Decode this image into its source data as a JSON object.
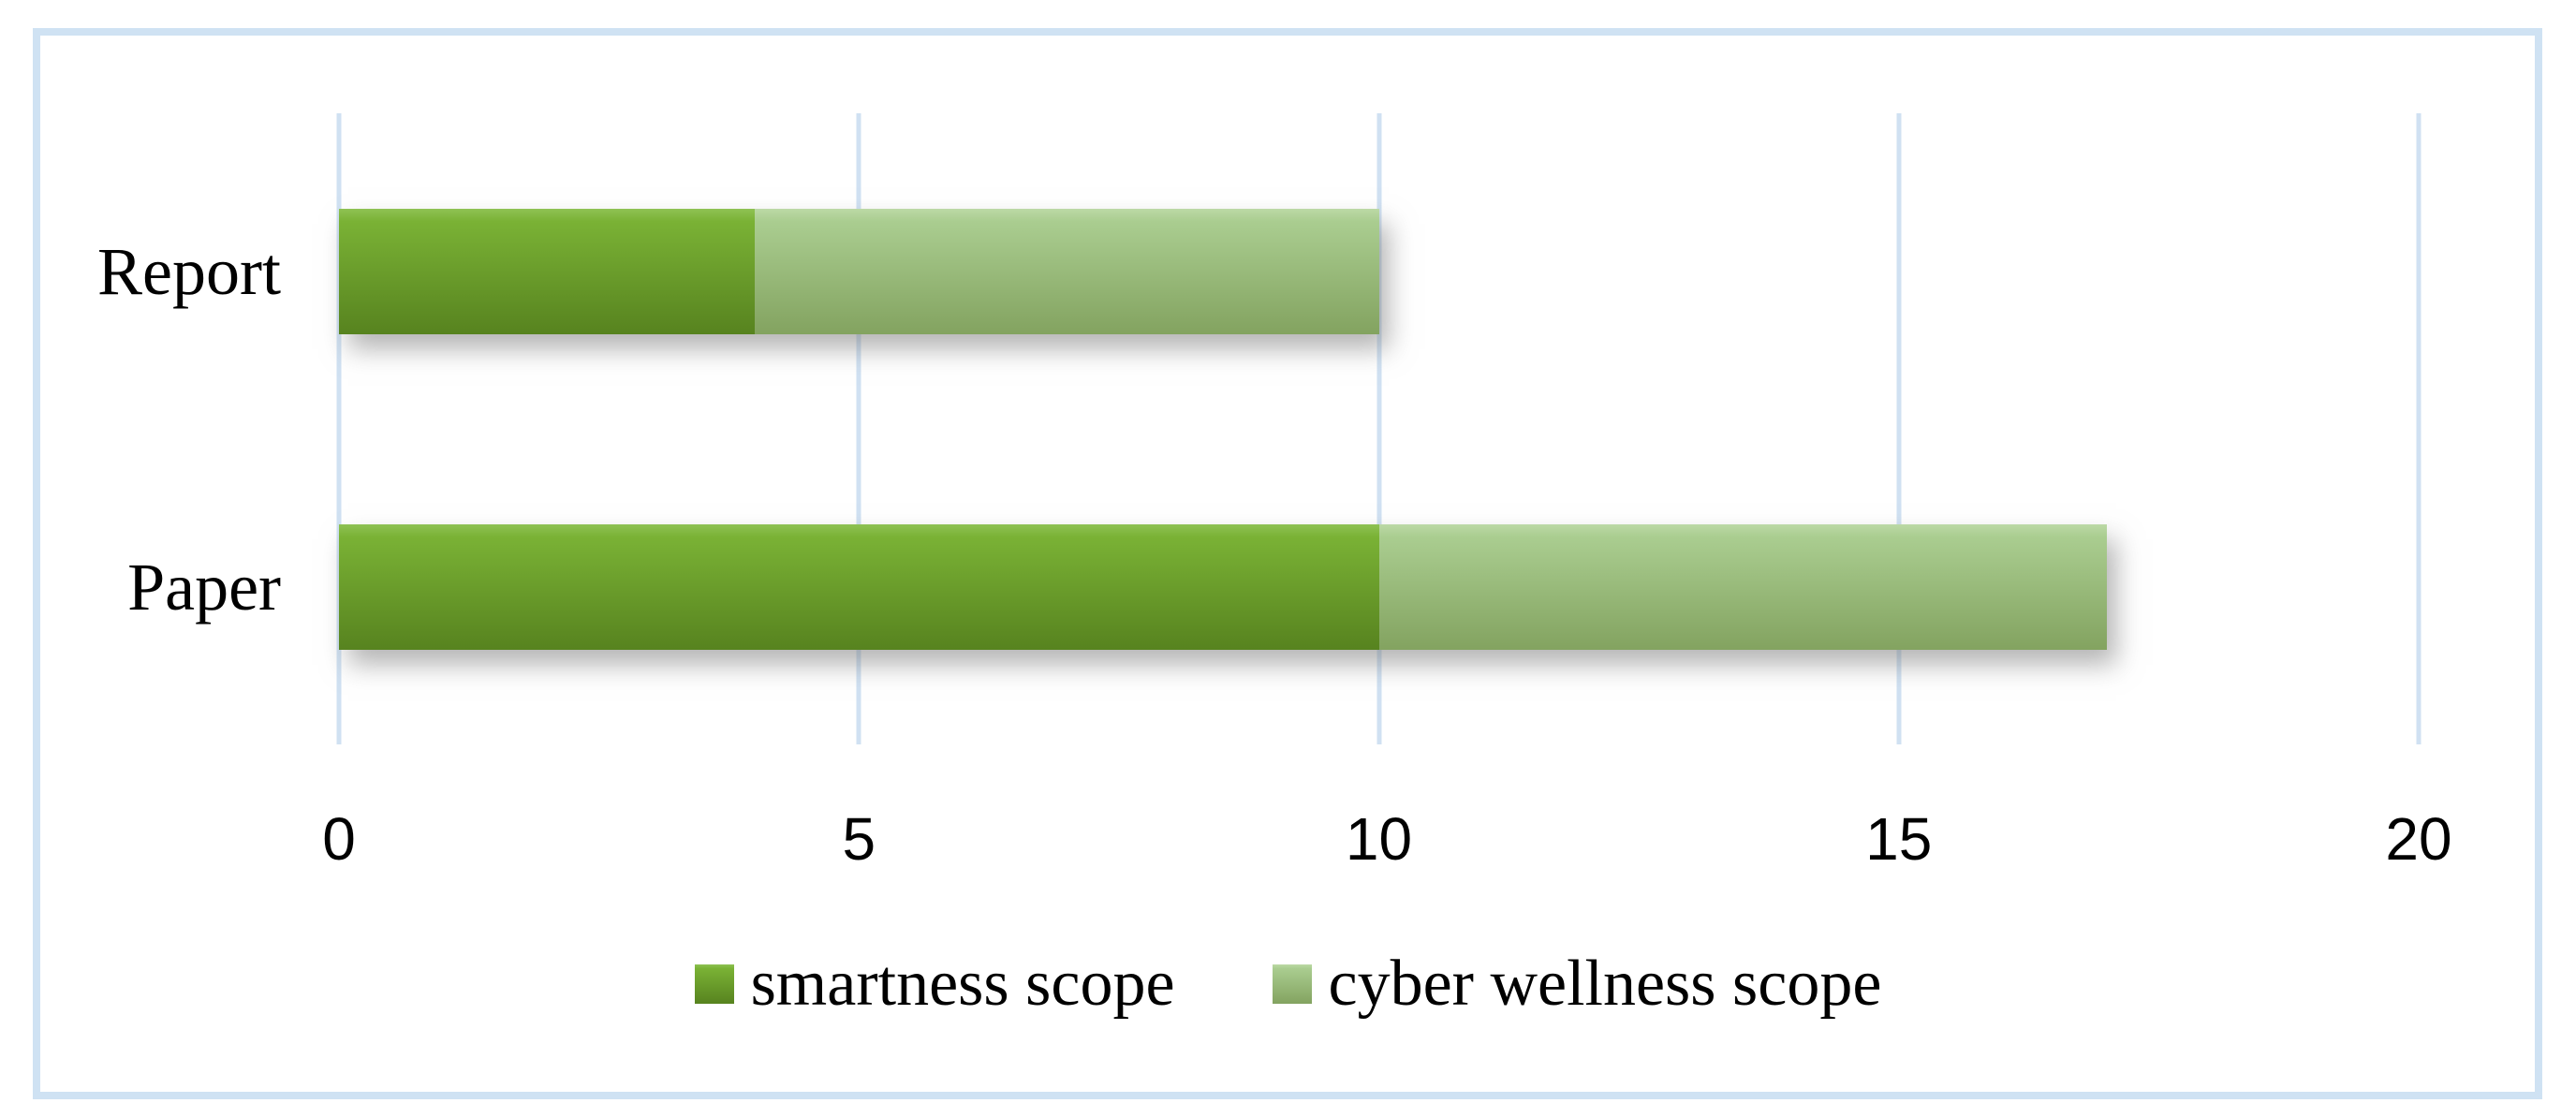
{
  "chart_data": {
    "type": "bar",
    "orientation": "horizontal",
    "stacked": true,
    "categories": [
      "Report",
      "Paper"
    ],
    "series": [
      {
        "name": "smartness scope",
        "values": [
          4,
          10
        ],
        "color": "#6da52c",
        "gradient": [
          "#8fc254",
          "#7ab235",
          "#57831f"
        ]
      },
      {
        "name": "cyber wellness scope",
        "values": [
          6,
          7
        ],
        "color": "#9cc07e",
        "gradient": [
          "#bcd9a6",
          "#aacd90",
          "#83a360"
        ]
      }
    ],
    "totals": [
      10,
      17
    ],
    "xlim": [
      0,
      20
    ],
    "xticks": [
      0,
      5,
      10,
      15,
      20
    ],
    "grid": "vertical-major",
    "grid_color": "#d0e1f2",
    "frame_color": "#cfe2f3",
    "background": "#ffffff",
    "legend_position": "bottom",
    "legend": [
      "smartness scope",
      "cyber wellness scope"
    ]
  }
}
